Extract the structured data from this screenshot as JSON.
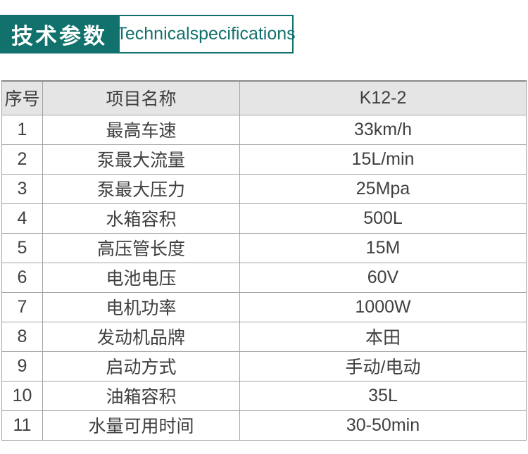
{
  "header": {
    "title_cn": "技术参数",
    "title_en": "Technicalspecifications",
    "accent_color": "#11716c"
  },
  "table": {
    "columns": [
      "序号",
      "项目名称",
      "K12-2"
    ],
    "rows": [
      {
        "no": "1",
        "name": "最高车速",
        "value": "33km/h"
      },
      {
        "no": "2",
        "name": "泵最大流量",
        "value": "15L/min"
      },
      {
        "no": "3",
        "name": "泵最大压力",
        "value": "25Mpa"
      },
      {
        "no": "4",
        "name": "水箱容积",
        "value": "500L"
      },
      {
        "no": "5",
        "name": "高压管长度",
        "value": "15M"
      },
      {
        "no": "6",
        "name": "电池电压",
        "value": "60V"
      },
      {
        "no": "7",
        "name": "电机功率",
        "value": "1000W"
      },
      {
        "no": "8",
        "name": "发动机品牌",
        "value": "本田"
      },
      {
        "no": "9",
        "name": "启动方式",
        "value": "手动/电动"
      },
      {
        "no": "10",
        "name": "油箱容积",
        "value": "35L"
      },
      {
        "no": "11",
        "name": "水量可用时间",
        "value": "30-50min"
      }
    ]
  }
}
